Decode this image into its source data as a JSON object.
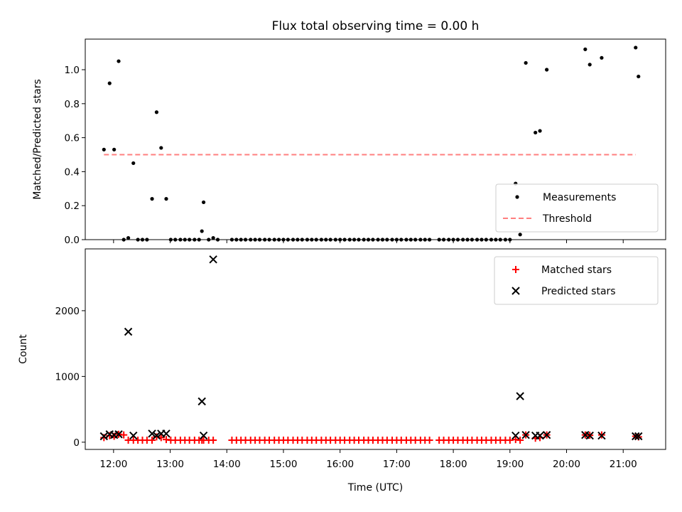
{
  "chart_data": [
    {
      "type": "scatter",
      "title": "Flux total observing time = 0.00 h",
      "xlabel": "",
      "ylabel": "Matched/Predicted stars",
      "xlim": [
        11.5,
        21.75
      ],
      "ylim": [
        0.0,
        1.18
      ],
      "yticks": [
        0.0,
        0.2,
        0.4,
        0.6,
        0.8,
        1.0
      ],
      "yticklabels": [
        "0.0",
        "0.2",
        "0.4",
        "0.6",
        "0.8",
        "1.0"
      ],
      "grid": false,
      "legend": "lower-right",
      "series": [
        {
          "name": "Measurements",
          "marker": "dot",
          "color": "#000000",
          "x": [
            11.83,
            11.93,
            12.01,
            12.09,
            12.18,
            12.26,
            12.35,
            12.43,
            12.51,
            12.59,
            12.68,
            12.76,
            12.84,
            12.93,
            13.01,
            13.09,
            13.18,
            13.26,
            13.34,
            13.43,
            13.51,
            13.56,
            13.59,
            13.68,
            13.76,
            13.84,
            14.09,
            14.17,
            14.25,
            14.33,
            14.42,
            14.5,
            14.58,
            14.67,
            14.75,
            14.84,
            14.92,
            15.0,
            15.08,
            15.17,
            15.25,
            15.33,
            15.42,
            15.5,
            15.58,
            15.67,
            15.75,
            15.83,
            15.92,
            16.0,
            16.08,
            16.17,
            16.25,
            16.33,
            16.42,
            16.5,
            16.58,
            16.67,
            16.75,
            16.83,
            16.92,
            17.0,
            17.08,
            17.17,
            17.25,
            17.33,
            17.42,
            17.5,
            17.58,
            17.75,
            17.83,
            17.92,
            18.0,
            18.08,
            18.17,
            18.25,
            18.33,
            18.42,
            18.5,
            18.58,
            18.67,
            18.75,
            18.83,
            18.92,
            19.0,
            19.1,
            19.18,
            19.28,
            19.45,
            19.53,
            19.65,
            20.33,
            20.41,
            20.62,
            21.22,
            21.27
          ],
          "y": [
            0.53,
            0.92,
            0.53,
            1.05,
            0.0,
            0.01,
            0.45,
            0.0,
            0.0,
            0.0,
            0.24,
            0.75,
            0.54,
            0.24,
            0.0,
            0.0,
            0.0,
            0.0,
            0.0,
            0.0,
            0.0,
            0.05,
            0.22,
            0.0,
            0.01,
            0.0,
            0.0,
            0.0,
            0.0,
            0.0,
            0.0,
            0.0,
            0.0,
            0.0,
            0.0,
            0.0,
            0.0,
            0.0,
            0.0,
            0.0,
            0.0,
            0.0,
            0.0,
            0.0,
            0.0,
            0.0,
            0.0,
            0.0,
            0.0,
            0.0,
            0.0,
            0.0,
            0.0,
            0.0,
            0.0,
            0.0,
            0.0,
            0.0,
            0.0,
            0.0,
            0.0,
            0.0,
            0.0,
            0.0,
            0.0,
            0.0,
            0.0,
            0.0,
            0.0,
            0.0,
            0.0,
            0.0,
            0.0,
            0.0,
            0.0,
            0.0,
            0.0,
            0.0,
            0.0,
            0.0,
            0.0,
            0.0,
            0.0,
            0.0,
            0.0,
            0.33,
            0.03,
            1.04,
            0.63,
            0.64,
            1.0,
            1.12,
            1.03,
            1.07,
            1.13,
            0.96
          ]
        },
        {
          "name": "Threshold",
          "kind": "line",
          "dash": "dashed",
          "color": "#ff7f7f",
          "x": [
            11.83,
            21.22
          ],
          "y": [
            0.5,
            0.5
          ]
        }
      ]
    },
    {
      "type": "scatter",
      "title": "",
      "xlabel": "Time (UTC)",
      "ylabel": "Count",
      "xlim": [
        11.5,
        21.75
      ],
      "ylim": [
        -110,
        2940
      ],
      "xticks": [
        12,
        13,
        14,
        15,
        16,
        17,
        18,
        19,
        20,
        21
      ],
      "xticklabels": [
        "12:00",
        "13:00",
        "14:00",
        "15:00",
        "16:00",
        "17:00",
        "18:00",
        "19:00",
        "20:00",
        "21:00"
      ],
      "yticks": [
        0,
        1000,
        2000
      ],
      "yticklabels": [
        "0",
        "1000",
        "2000"
      ],
      "grid": false,
      "legend": "top-right",
      "series": [
        {
          "name": "Matched stars",
          "marker": "plus",
          "color": "#ff0000",
          "x": [
            11.83,
            11.93,
            12.01,
            12.09,
            12.18,
            12.26,
            12.35,
            12.43,
            12.51,
            12.59,
            12.68,
            12.76,
            12.84,
            12.93,
            13.01,
            13.09,
            13.18,
            13.26,
            13.34,
            13.43,
            13.51,
            13.56,
            13.59,
            13.68,
            13.76,
            14.09,
            14.17,
            14.25,
            14.33,
            14.42,
            14.5,
            14.58,
            14.67,
            14.75,
            14.84,
            14.92,
            15.0,
            15.08,
            15.17,
            15.25,
            15.33,
            15.42,
            15.5,
            15.58,
            15.67,
            15.75,
            15.83,
            15.92,
            16.0,
            16.08,
            16.17,
            16.25,
            16.33,
            16.42,
            16.5,
            16.58,
            16.67,
            16.75,
            16.83,
            16.92,
            17.0,
            17.08,
            17.17,
            17.25,
            17.33,
            17.42,
            17.5,
            17.58,
            17.75,
            17.83,
            17.92,
            18.0,
            18.08,
            18.17,
            18.25,
            18.33,
            18.42,
            18.5,
            18.58,
            18.67,
            18.75,
            18.83,
            18.92,
            19.0,
            19.1,
            19.18,
            19.28,
            19.45,
            19.53,
            19.65,
            20.33,
            20.41,
            20.62,
            21.22,
            21.27
          ],
          "y": [
            70,
            100,
            90,
            120,
            110,
            30,
            30,
            30,
            30,
            30,
            30,
            80,
            70,
            40,
            30,
            30,
            30,
            30,
            30,
            30,
            30,
            30,
            30,
            30,
            30,
            30,
            30,
            30,
            30,
            30,
            30,
            30,
            30,
            30,
            30,
            30,
            30,
            30,
            30,
            30,
            30,
            30,
            30,
            30,
            30,
            30,
            30,
            30,
            30,
            30,
            30,
            30,
            30,
            30,
            30,
            30,
            30,
            30,
            30,
            30,
            30,
            30,
            30,
            30,
            30,
            30,
            30,
            30,
            30,
            30,
            30,
            30,
            30,
            30,
            30,
            30,
            30,
            30,
            30,
            30,
            30,
            30,
            30,
            30,
            40,
            30,
            110,
            60,
            70,
            110,
            110,
            105,
            110,
            90,
            80
          ]
        },
        {
          "name": "Predicted stars",
          "marker": "x",
          "color": "#000000",
          "x": [
            11.83,
            11.93,
            12.01,
            12.09,
            12.26,
            12.35,
            12.68,
            12.76,
            12.84,
            12.93,
            13.56,
            13.59,
            13.76,
            19.1,
            19.18,
            19.28,
            19.45,
            19.53,
            19.65,
            20.33,
            20.41,
            20.62,
            21.22,
            21.27
          ],
          "y": [
            90,
            120,
            110,
            120,
            1680,
            100,
            130,
            100,
            130,
            130,
            620,
            100,
            2780,
            100,
            700,
            110,
            100,
            100,
            110,
            110,
            100,
            100,
            90,
            90
          ]
        }
      ]
    }
  ]
}
